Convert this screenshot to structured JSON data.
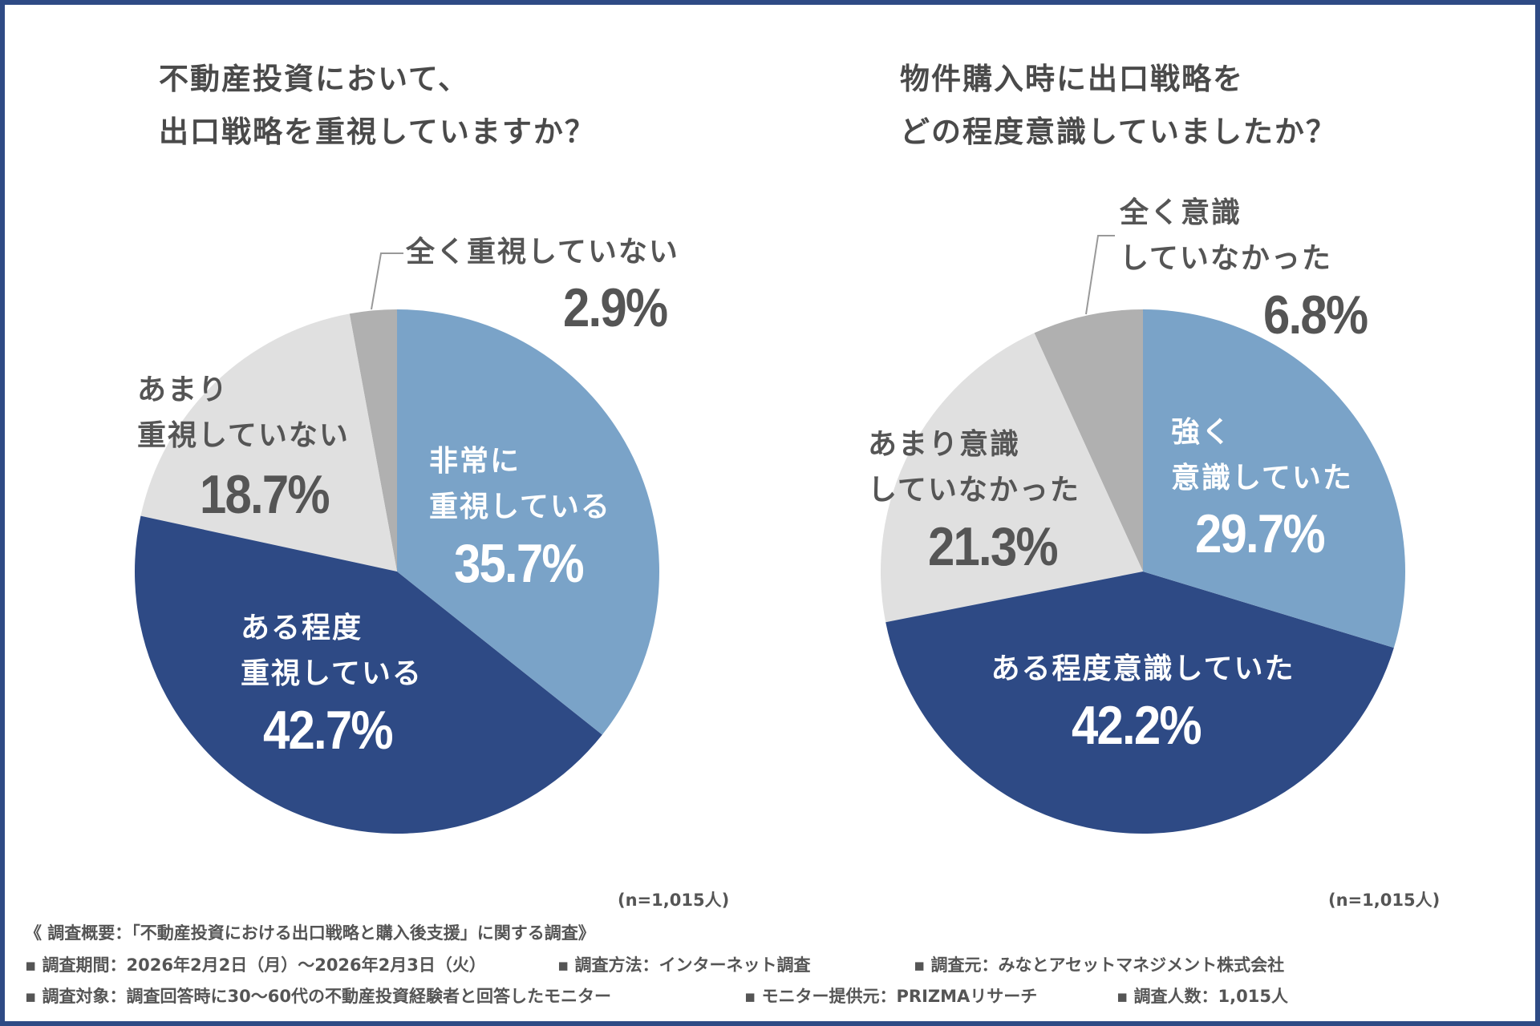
{
  "colors": {
    "frame": "#2e4a85",
    "slices": [
      "#7aa3c8",
      "#2e4a85",
      "#e0e0e0",
      "#b0b0b0"
    ]
  },
  "chart_data": [
    {
      "type": "pie",
      "title": [
        "不動産投資において、",
        "出口戦略を重視していますか？"
      ],
      "slices": [
        {
          "label": [
            "非常に",
            "重視している"
          ],
          "value": 35.7,
          "display": "35.7%"
        },
        {
          "label": [
            "ある程度",
            "重視している"
          ],
          "value": 42.7,
          "display": "42.7%"
        },
        {
          "label": [
            "あまり",
            "重視していない"
          ],
          "value": 18.7,
          "display": "18.7%"
        },
        {
          "label": [
            "全く重視していない"
          ],
          "value": 2.9,
          "display": "2.9%"
        }
      ],
      "start": "top",
      "direction": "clockwise",
      "note": "(n=1,015人)"
    },
    {
      "type": "pie",
      "title": [
        "物件購入時に出口戦略を",
        "どの程度意識していましたか？"
      ],
      "slices": [
        {
          "label": [
            "強く",
            "意識していた"
          ],
          "value": 29.7,
          "display": "29.7%"
        },
        {
          "label": [
            "ある程度意識していた"
          ],
          "value": 42.2,
          "display": "42.2%"
        },
        {
          "label": [
            "あまり意識",
            "していなかった"
          ],
          "value": 21.3,
          "display": "21.3%"
        },
        {
          "label": [
            "全く意識",
            "していなかった"
          ],
          "value": 6.8,
          "display": "6.8%"
        }
      ],
      "start": "top",
      "direction": "clockwise",
      "note": "(n=1,015人)"
    }
  ],
  "footer": {
    "heading": "《 調査概要：「不動産投資における出口戦略と購入後支援」に関する調査》",
    "row1": [
      "▪ 調査期間：2026年2月2日（月）～2026年2月3日（火）",
      "▪ 調査方法：インターネット調査",
      "▪ 調査元：みなとアセットマネジメント株式会社"
    ],
    "row2": [
      "▪ 調査対象：調査回答時に30～60代の不動産投資経験者と回答したモニター",
      "▪ モニター提供元：PRIZMAリサーチ",
      "▪ 調査人数：1,015人"
    ]
  }
}
